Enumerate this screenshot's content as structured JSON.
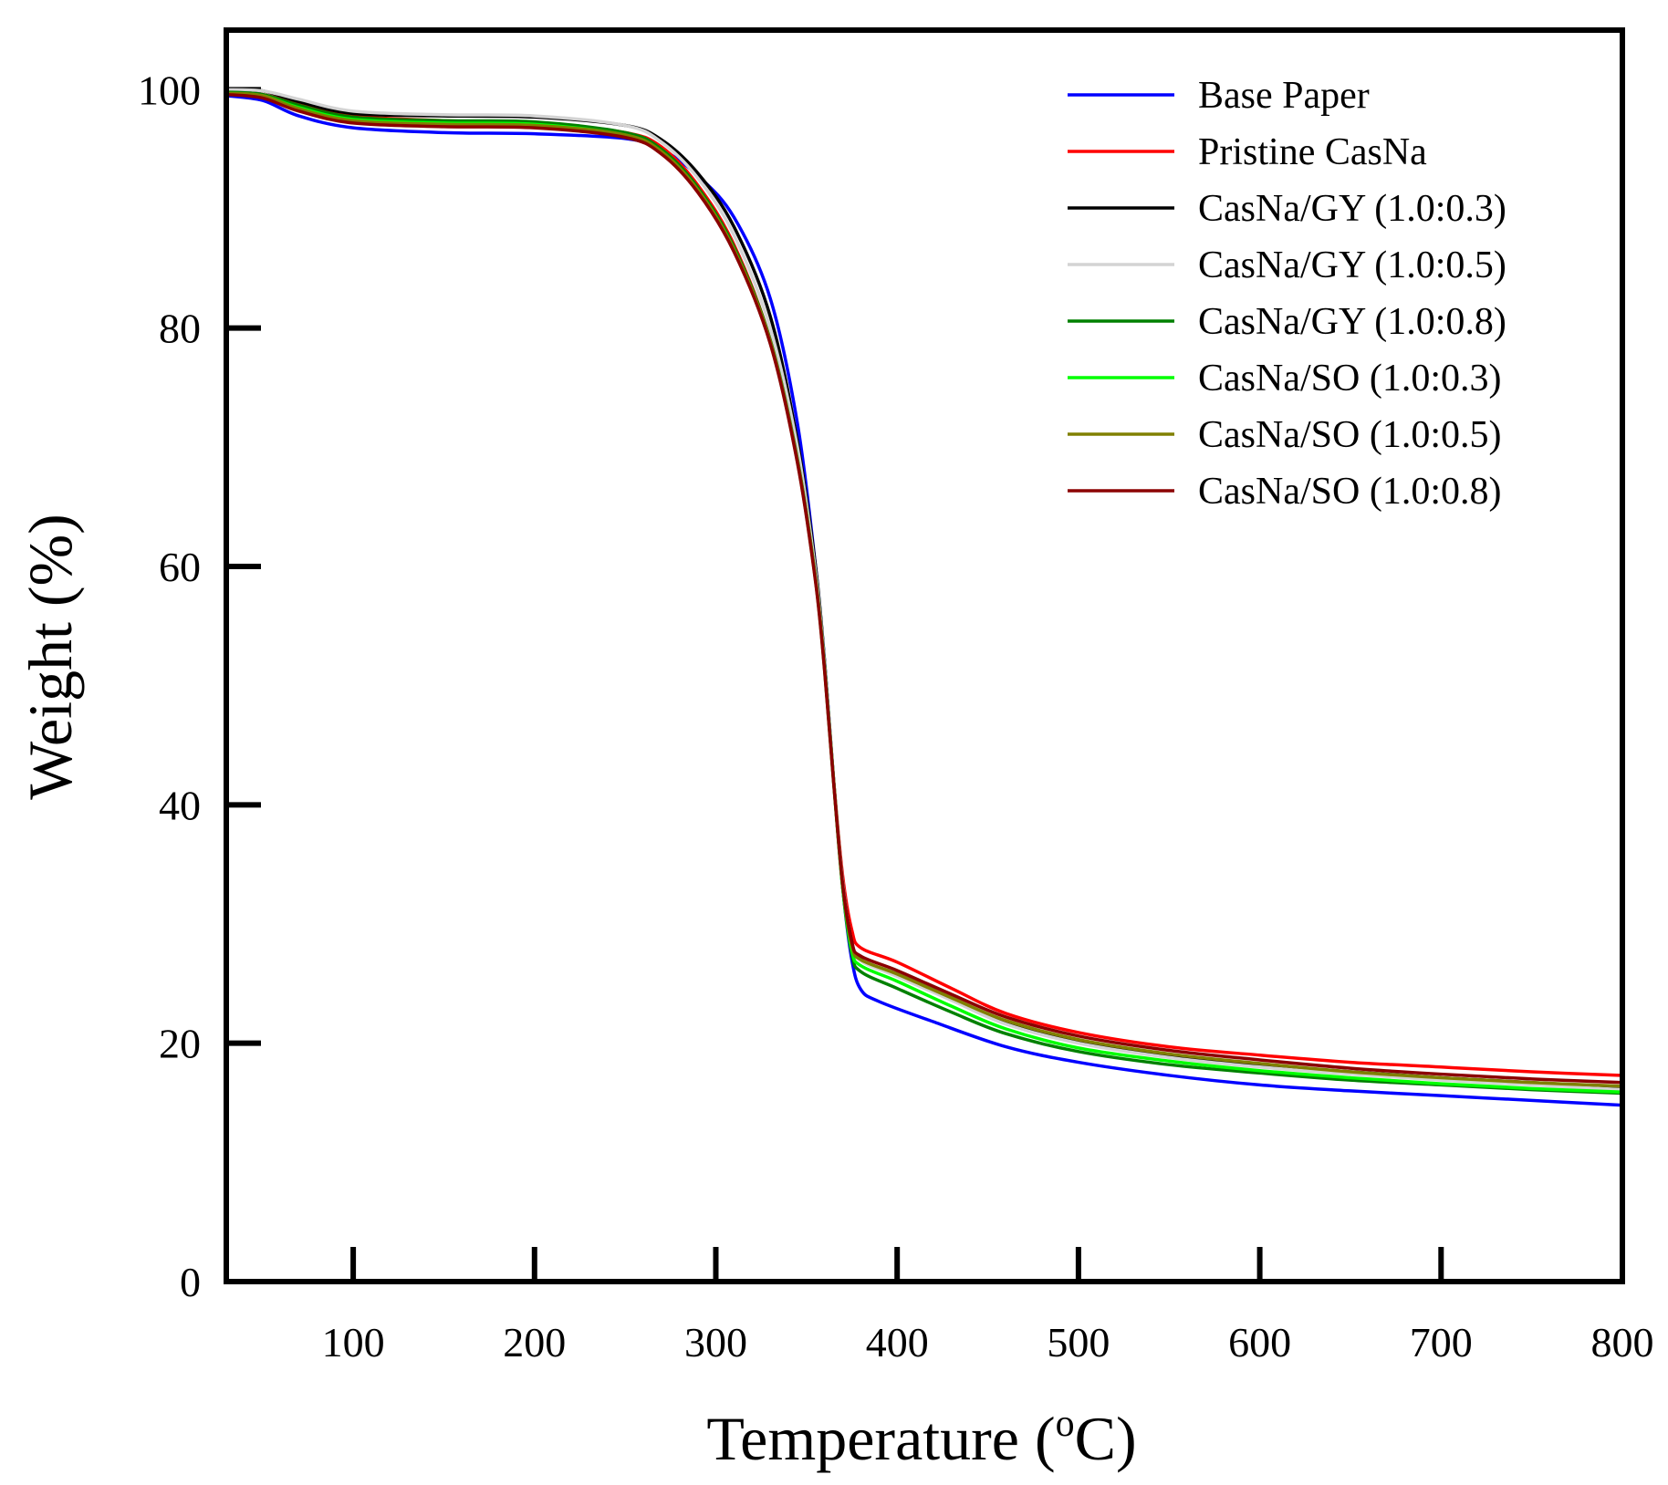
{
  "chart_data": {
    "type": "line",
    "title": "",
    "xlabel_main": "Temperature (",
    "xlabel_sup": "o",
    "xlabel_end": "C)",
    "ylabel": "Weight (%)",
    "xlim": [
      30,
      800
    ],
    "ylim": [
      0,
      105
    ],
    "xticks": [
      100,
      200,
      300,
      400,
      500,
      600,
      700,
      800
    ],
    "yticks": [
      0,
      20,
      40,
      60,
      80,
      100
    ],
    "xtick_labels": [
      "100",
      "200",
      "300",
      "400",
      "500",
      "600",
      "700",
      "800"
    ],
    "ytick_labels": [
      "0",
      "20",
      "40",
      "60",
      "80",
      "100"
    ],
    "legend_position": "top-right",
    "series": [
      {
        "name": "Base Paper",
        "color": "#0000ff",
        "points": [
          [
            30,
            99.5
          ],
          [
            50,
            99.1
          ],
          [
            70,
            97.8
          ],
          [
            100,
            96.8
          ],
          [
            150,
            96.4
          ],
          [
            200,
            96.3
          ],
          [
            250,
            95.9
          ],
          [
            270,
            95.0
          ],
          [
            290,
            92.8
          ],
          [
            310,
            89.3
          ],
          [
            330,
            82.5
          ],
          [
            345,
            72.0
          ],
          [
            355,
            60.0
          ],
          [
            360,
            52.0
          ],
          [
            365,
            42.0
          ],
          [
            370,
            33.0
          ],
          [
            375,
            27.0
          ],
          [
            380,
            24.5
          ],
          [
            390,
            23.5
          ],
          [
            420,
            21.8
          ],
          [
            460,
            19.7
          ],
          [
            500,
            18.4
          ],
          [
            550,
            17.3
          ],
          [
            600,
            16.5
          ],
          [
            650,
            16.0
          ],
          [
            700,
            15.6
          ],
          [
            750,
            15.2
          ],
          [
            800,
            14.8
          ]
        ]
      },
      {
        "name": "Pristine CasNa",
        "color": "#ff0000",
        "points": [
          [
            30,
            99.8
          ],
          [
            50,
            99.6
          ],
          [
            70,
            98.8
          ],
          [
            100,
            97.8
          ],
          [
            150,
            97.4
          ],
          [
            200,
            97.2
          ],
          [
            250,
            96.4
          ],
          [
            270,
            95.2
          ],
          [
            290,
            92.0
          ],
          [
            310,
            87.0
          ],
          [
            330,
            79.0
          ],
          [
            345,
            69.0
          ],
          [
            355,
            59.0
          ],
          [
            360,
            51.5
          ],
          [
            365,
            42.0
          ],
          [
            370,
            34.0
          ],
          [
            375,
            29.5
          ],
          [
            380,
            28.0
          ],
          [
            400,
            26.8
          ],
          [
            430,
            24.6
          ],
          [
            460,
            22.5
          ],
          [
            500,
            20.9
          ],
          [
            550,
            19.7
          ],
          [
            600,
            19.0
          ],
          [
            650,
            18.4
          ],
          [
            700,
            18.0
          ],
          [
            750,
            17.6
          ],
          [
            800,
            17.3
          ]
        ]
      },
      {
        "name": "CasNa/GY (1.0:0.3)",
        "color": "#000000",
        "points": [
          [
            30,
            100.0
          ],
          [
            50,
            99.9
          ],
          [
            70,
            99.0
          ],
          [
            100,
            98.0
          ],
          [
            150,
            97.8
          ],
          [
            200,
            97.7
          ],
          [
            250,
            97.0
          ],
          [
            270,
            95.8
          ],
          [
            290,
            93.0
          ],
          [
            310,
            88.5
          ],
          [
            330,
            81.0
          ],
          [
            345,
            70.5
          ],
          [
            355,
            60.0
          ],
          [
            360,
            52.0
          ],
          [
            365,
            42.0
          ],
          [
            370,
            33.5
          ],
          [
            375,
            28.5
          ],
          [
            380,
            27.0
          ],
          [
            400,
            25.8
          ],
          [
            430,
            23.8
          ],
          [
            460,
            21.8
          ],
          [
            500,
            20.2
          ],
          [
            550,
            19.0
          ],
          [
            600,
            18.2
          ],
          [
            650,
            17.6
          ],
          [
            700,
            17.1
          ],
          [
            750,
            16.7
          ],
          [
            800,
            16.3
          ]
        ]
      },
      {
        "name": "CasNa/GY (1.0:0.5)",
        "color": "#d3d3d3",
        "points": [
          [
            30,
            100.0
          ],
          [
            50,
            99.9
          ],
          [
            70,
            99.2
          ],
          [
            100,
            98.2
          ],
          [
            150,
            97.9
          ],
          [
            200,
            97.8
          ],
          [
            250,
            97.0
          ],
          [
            270,
            95.6
          ],
          [
            290,
            92.6
          ],
          [
            310,
            87.8
          ],
          [
            330,
            80.0
          ],
          [
            345,
            70.0
          ],
          [
            355,
            59.5
          ],
          [
            360,
            51.8
          ],
          [
            365,
            42.0
          ],
          [
            370,
            33.5
          ],
          [
            375,
            28.3
          ],
          [
            380,
            26.9
          ],
          [
            400,
            25.6
          ],
          [
            430,
            23.6
          ],
          [
            460,
            21.6
          ],
          [
            500,
            20.0
          ],
          [
            550,
            18.8
          ],
          [
            600,
            18.0
          ],
          [
            650,
            17.4
          ],
          [
            700,
            16.9
          ],
          [
            750,
            16.5
          ],
          [
            800,
            16.1
          ]
        ]
      },
      {
        "name": "CasNa/GY (1.0:0.8)",
        "color": "#008000",
        "points": [
          [
            30,
            99.8
          ],
          [
            50,
            99.6
          ],
          [
            70,
            98.7
          ],
          [
            100,
            97.7
          ],
          [
            150,
            97.4
          ],
          [
            200,
            97.3
          ],
          [
            250,
            96.4
          ],
          [
            270,
            95.0
          ],
          [
            290,
            91.8
          ],
          [
            310,
            86.8
          ],
          [
            330,
            79.0
          ],
          [
            345,
            69.0
          ],
          [
            355,
            59.0
          ],
          [
            360,
            51.5
          ],
          [
            365,
            42.0
          ],
          [
            370,
            33.0
          ],
          [
            375,
            27.5
          ],
          [
            380,
            26.0
          ],
          [
            400,
            24.6
          ],
          [
            430,
            22.6
          ],
          [
            460,
            20.8
          ],
          [
            500,
            19.3
          ],
          [
            550,
            18.2
          ],
          [
            600,
            17.5
          ],
          [
            650,
            16.9
          ],
          [
            700,
            16.5
          ],
          [
            750,
            16.1
          ],
          [
            800,
            15.8
          ]
        ]
      },
      {
        "name": "CasNa/SO (1.0:0.3)",
        "color": "#00ff00",
        "points": [
          [
            30,
            99.7
          ],
          [
            50,
            99.5
          ],
          [
            70,
            98.5
          ],
          [
            100,
            97.5
          ],
          [
            150,
            97.2
          ],
          [
            200,
            97.1
          ],
          [
            250,
            96.2
          ],
          [
            270,
            94.8
          ],
          [
            290,
            91.6
          ],
          [
            310,
            86.6
          ],
          [
            330,
            78.8
          ],
          [
            345,
            68.8
          ],
          [
            355,
            58.8
          ],
          [
            360,
            51.3
          ],
          [
            365,
            41.8
          ],
          [
            370,
            33.0
          ],
          [
            375,
            27.8
          ],
          [
            380,
            26.5
          ],
          [
            400,
            25.2
          ],
          [
            430,
            23.1
          ],
          [
            460,
            21.2
          ],
          [
            500,
            19.6
          ],
          [
            550,
            18.5
          ],
          [
            600,
            17.7
          ],
          [
            650,
            17.1
          ],
          [
            700,
            16.6
          ],
          [
            750,
            16.2
          ],
          [
            800,
            15.9
          ]
        ]
      },
      {
        "name": "CasNa/SO (1.0:0.5)",
        "color": "#808000",
        "points": [
          [
            30,
            99.7
          ],
          [
            50,
            99.5
          ],
          [
            70,
            98.4
          ],
          [
            100,
            97.4
          ],
          [
            150,
            97.1
          ],
          [
            200,
            97.0
          ],
          [
            250,
            96.2
          ],
          [
            270,
            94.8
          ],
          [
            290,
            91.6
          ],
          [
            310,
            86.6
          ],
          [
            330,
            78.9
          ],
          [
            345,
            68.9
          ],
          [
            355,
            58.9
          ],
          [
            360,
            51.4
          ],
          [
            365,
            41.9
          ],
          [
            370,
            33.2
          ],
          [
            375,
            28.2
          ],
          [
            380,
            27.0
          ],
          [
            400,
            25.8
          ],
          [
            430,
            23.8
          ],
          [
            460,
            21.9
          ],
          [
            500,
            20.3
          ],
          [
            550,
            19.1
          ],
          [
            600,
            18.3
          ],
          [
            650,
            17.6
          ],
          [
            700,
            17.1
          ],
          [
            750,
            16.7
          ],
          [
            800,
            16.4
          ]
        ]
      },
      {
        "name": "CasNa/SO (1.0:0.8)",
        "color": "#8b0000",
        "points": [
          [
            30,
            99.6
          ],
          [
            50,
            99.3
          ],
          [
            70,
            98.2
          ],
          [
            100,
            97.2
          ],
          [
            150,
            96.9
          ],
          [
            200,
            96.8
          ],
          [
            250,
            96.0
          ],
          [
            270,
            94.6
          ],
          [
            290,
            91.4
          ],
          [
            310,
            86.4
          ],
          [
            330,
            78.7
          ],
          [
            345,
            68.7
          ],
          [
            355,
            58.7
          ],
          [
            360,
            51.2
          ],
          [
            365,
            41.8
          ],
          [
            370,
            33.3
          ],
          [
            375,
            28.5
          ],
          [
            380,
            27.3
          ],
          [
            400,
            26.1
          ],
          [
            430,
            24.1
          ],
          [
            460,
            22.2
          ],
          [
            500,
            20.6
          ],
          [
            550,
            19.4
          ],
          [
            600,
            18.6
          ],
          [
            650,
            17.9
          ],
          [
            700,
            17.4
          ],
          [
            750,
            17.0
          ],
          [
            800,
            16.7
          ]
        ]
      }
    ]
  }
}
